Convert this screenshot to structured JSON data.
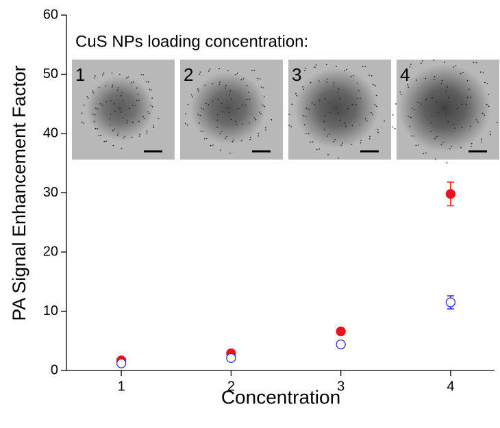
{
  "chart_data": {
    "type": "scatter",
    "annotation": "CuS NPs loading concentration:",
    "inset_labels": [
      "1",
      "2",
      "3",
      "4"
    ],
    "x_label": "Concentration",
    "y_label": "PA Signal Enhancement  Factor",
    "x": [
      1,
      2,
      3,
      4
    ],
    "series": [
      {
        "color": "#e8141b",
        "filled": true,
        "values": [
          1.7,
          2.9,
          6.6,
          29.8
        ],
        "errors": [
          0.2,
          0.3,
          0.4,
          2.0
        ]
      },
      {
        "color": "#2a2ad0",
        "filled": false,
        "values": [
          1.2,
          2.1,
          4.4,
          11.5
        ],
        "errors": [
          0.1,
          0.2,
          0.3,
          1.1
        ]
      }
    ],
    "xlim": [
      0.5,
      4.4
    ],
    "xticks": [
      1,
      2,
      3,
      4
    ],
    "ylim": [
      0,
      60
    ],
    "yticks": [
      0,
      10,
      20,
      30,
      40,
      50,
      60
    ]
  }
}
